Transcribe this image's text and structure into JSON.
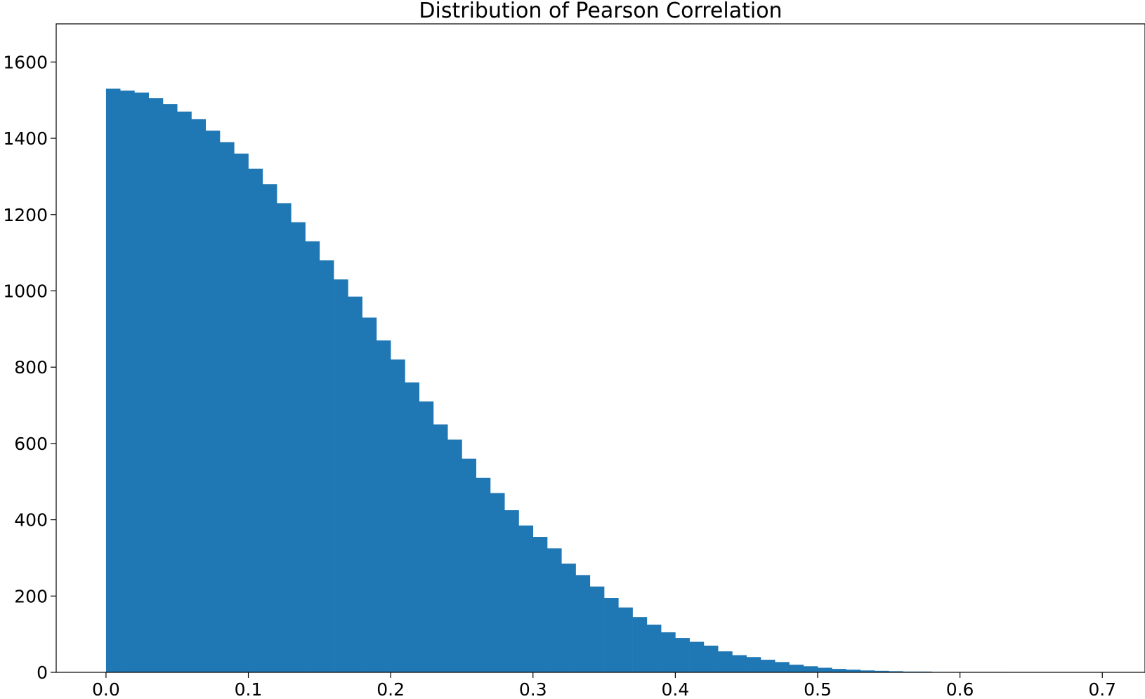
{
  "chart_data": {
    "type": "bar",
    "title": "Distribution of Pearson Correlation",
    "xlabel": "",
    "ylabel": "",
    "xlim": [
      -0.035,
      0.73
    ],
    "ylim": [
      0,
      1700
    ],
    "x_ticks": [
      "0.0",
      "0.1",
      "0.2",
      "0.3",
      "0.4",
      "0.5",
      "0.6",
      "0.7"
    ],
    "y_ticks": [
      "0",
      "200",
      "400",
      "600",
      "800",
      "1000",
      "1200",
      "1400",
      "1600"
    ],
    "bar_color": "#1f77b4",
    "bin_width": 0.01,
    "grid": false,
    "series": [
      {
        "bin_left": [
          0.0,
          0.01,
          0.02,
          0.03,
          0.04,
          0.05,
          0.06,
          0.07,
          0.08,
          0.09,
          0.1,
          0.11,
          0.12,
          0.13,
          0.14,
          0.15,
          0.16,
          0.17,
          0.18,
          0.19,
          0.2,
          0.21,
          0.22,
          0.23,
          0.24,
          0.25,
          0.26,
          0.27,
          0.28,
          0.29,
          0.3,
          0.31,
          0.32,
          0.33,
          0.34,
          0.35,
          0.36,
          0.37,
          0.38,
          0.39,
          0.4,
          0.41,
          0.42,
          0.43,
          0.44,
          0.45,
          0.46,
          0.47,
          0.48,
          0.49,
          0.5,
          0.51,
          0.52,
          0.53,
          0.54,
          0.55,
          0.56,
          0.57,
          0.58,
          0.59,
          0.6,
          0.61,
          0.62,
          0.63,
          0.64,
          0.65,
          0.66,
          0.67,
          0.68,
          0.69,
          0.7
        ],
        "values": [
          1530,
          1525,
          1520,
          1505,
          1490,
          1470,
          1450,
          1420,
          1390,
          1360,
          1320,
          1280,
          1230,
          1180,
          1130,
          1080,
          1030,
          985,
          930,
          870,
          820,
          760,
          710,
          650,
          610,
          560,
          510,
          470,
          425,
          385,
          355,
          325,
          285,
          255,
          225,
          195,
          170,
          145,
          125,
          105,
          90,
          80,
          70,
          55,
          45,
          40,
          33,
          27,
          20,
          16,
          12,
          9,
          7,
          5,
          4,
          3,
          2,
          2,
          1,
          1,
          1,
          1,
          1,
          0,
          0,
          0,
          0,
          0,
          0,
          0,
          0
        ]
      }
    ]
  }
}
